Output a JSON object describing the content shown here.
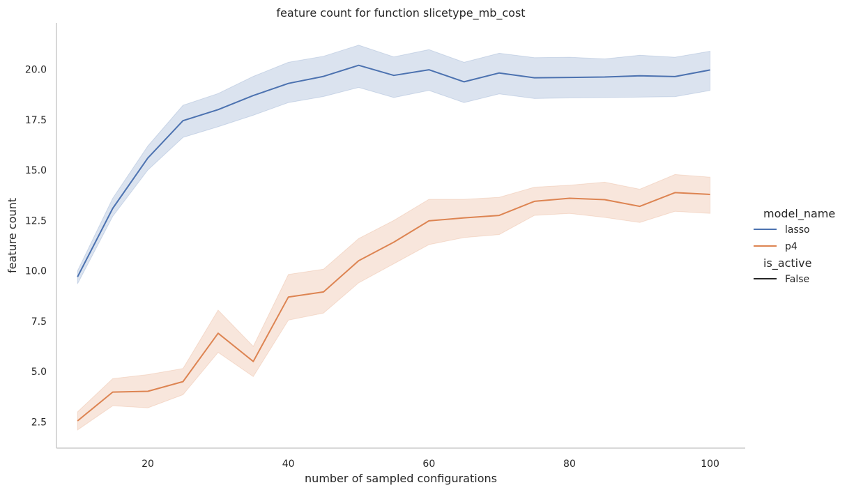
{
  "chart_data": {
    "type": "line",
    "title": "feature count for function slicetype_mb_cost",
    "xlabel": "number of sampled configurations",
    "ylabel": "feature count",
    "xlim": [
      7,
      105
    ],
    "ylim": [
      1.2,
      22.3
    ],
    "xticks": [
      20,
      40,
      60,
      80,
      100
    ],
    "yticks": [
      2.5,
      5.0,
      7.5,
      10.0,
      12.5,
      15.0,
      17.5,
      20.0
    ],
    "ytick_labels": [
      "2.5",
      "5.0",
      "7.5",
      "10.0",
      "12.5",
      "15.0",
      "17.5",
      "20.0"
    ],
    "xtick_labels": [
      "20",
      "40",
      "60",
      "80",
      "100"
    ],
    "grid": false,
    "x": [
      10,
      15,
      20,
      25,
      30,
      35,
      40,
      45,
      50,
      55,
      60,
      65,
      70,
      75,
      80,
      85,
      90,
      95,
      100
    ],
    "series": [
      {
        "name": "lasso",
        "color": "#4c72b0",
        "values": [
          9.7,
          13.1,
          15.6,
          17.45,
          18.0,
          18.7,
          19.3,
          19.65,
          20.2,
          19.7,
          19.98,
          19.38,
          19.82,
          19.58,
          19.6,
          19.62,
          19.68,
          19.64,
          19.97
        ],
        "ci_low": [
          9.35,
          12.7,
          15.0,
          16.62,
          17.15,
          17.72,
          18.35,
          18.65,
          19.1,
          18.6,
          18.95,
          18.35,
          18.78,
          18.55,
          18.58,
          18.6,
          18.62,
          18.64,
          18.95
        ],
        "ci_high": [
          10.0,
          13.6,
          16.2,
          18.22,
          18.8,
          19.65,
          20.35,
          20.65,
          21.2,
          20.62,
          20.98,
          20.35,
          20.8,
          20.58,
          20.6,
          20.52,
          20.7,
          20.6,
          20.9
        ]
      },
      {
        "name": "p4",
        "color": "#dd8452",
        "values": [
          2.55,
          3.98,
          4.02,
          4.5,
          6.9,
          5.5,
          8.7,
          8.95,
          10.5,
          11.42,
          12.48,
          12.63,
          12.75,
          13.45,
          13.6,
          13.53,
          13.2,
          13.88,
          13.79
        ],
        "ci_low": [
          2.1,
          3.3,
          3.2,
          3.85,
          5.95,
          4.75,
          7.55,
          7.9,
          9.4,
          10.35,
          11.3,
          11.65,
          11.8,
          12.75,
          12.85,
          12.65,
          12.4,
          12.95,
          12.85
        ],
        "ci_high": [
          3.0,
          4.65,
          4.85,
          5.15,
          8.05,
          6.25,
          9.82,
          10.08,
          11.6,
          12.5,
          13.55,
          13.55,
          13.65,
          14.15,
          14.25,
          14.4,
          14.05,
          14.78,
          14.65
        ]
      }
    ],
    "legend": {
      "placement": "right",
      "hue_title": "model_name",
      "hue_entries": [
        "lasso",
        "p4"
      ],
      "style_title": "is_active",
      "style_entries": [
        "False"
      ],
      "style_color": "#262626"
    },
    "axis_color": "#cccccc"
  }
}
